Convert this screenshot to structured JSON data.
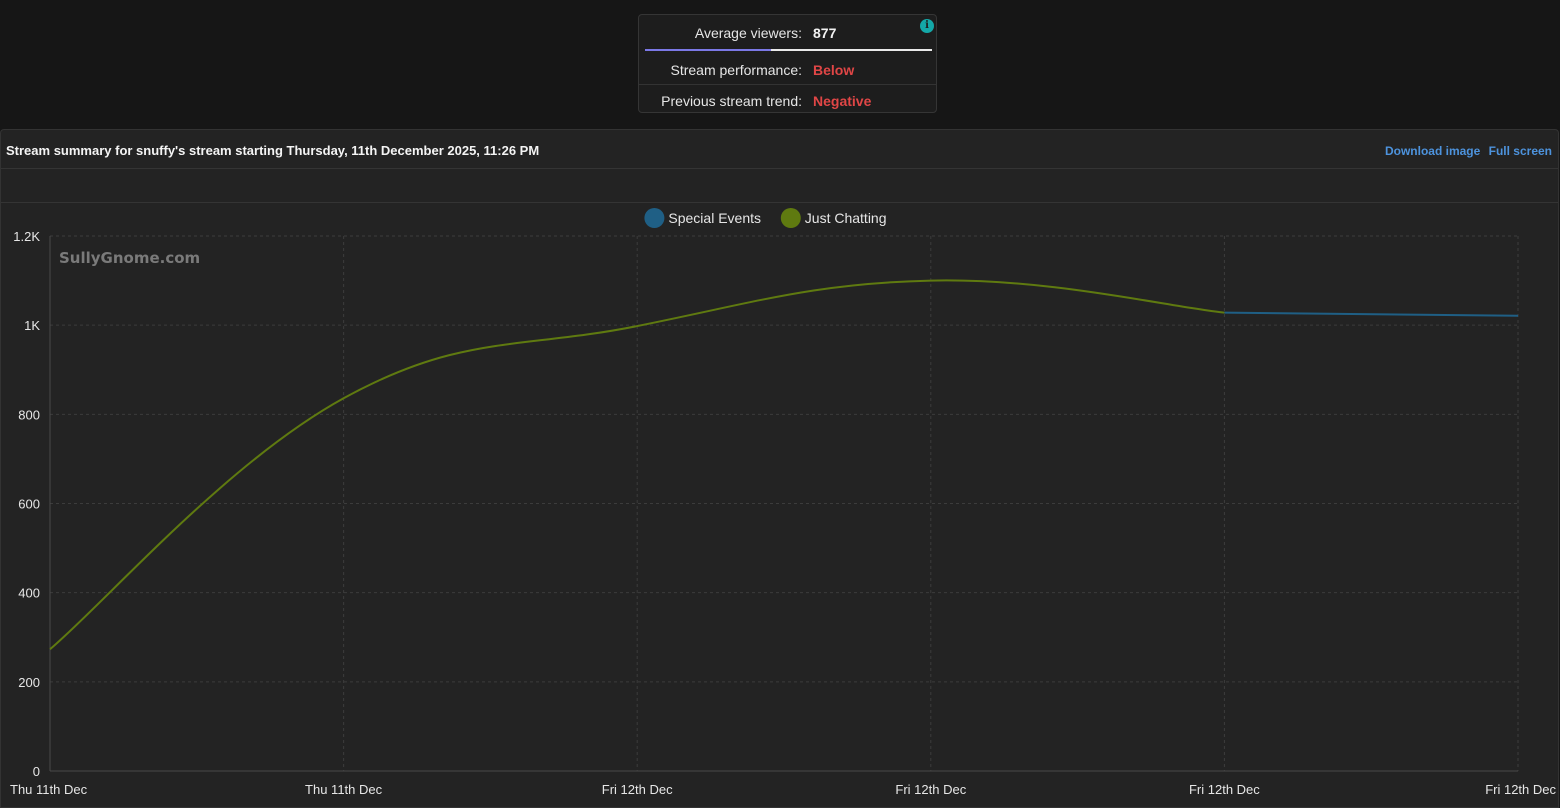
{
  "stats": {
    "average_viewers_label": "Average viewers:",
    "average_viewers_value": "877",
    "average_viewers_fraction": 0.44,
    "performance_label": "Stream performance:",
    "performance_value": "Below",
    "trend_label": "Previous stream trend:",
    "trend_value": "Negative",
    "info_icon": "i"
  },
  "panel": {
    "title": "Stream summary for snuffy's stream starting Thursday, 11th December 2025, 11:26 PM",
    "download_label": "Download image",
    "fullscreen_label": "Full screen"
  },
  "chart_data": {
    "type": "line",
    "watermark": "SullyGnome.com",
    "x": [
      "Thu 11th Dec",
      "Thu 11th Dec",
      "Fri 12th Dec",
      "Fri 12th Dec",
      "Fri 12th Dec",
      "Fri 12th Dec"
    ],
    "series": [
      {
        "name": "Special Events",
        "color": "#1f5f85",
        "points": [
          [
            4,
            1028
          ],
          [
            5,
            1021
          ]
        ]
      },
      {
        "name": "Just Chatting",
        "color": "#5f7a10",
        "points": [
          [
            0,
            273
          ],
          [
            1,
            836
          ],
          [
            2,
            998
          ],
          [
            3,
            1100
          ],
          [
            4,
            1028
          ]
        ]
      }
    ],
    "legend": [
      "Special Events",
      "Just Chatting"
    ],
    "legend_position": "top-center",
    "yticks": [
      0,
      200,
      400,
      600,
      800,
      1000,
      1200
    ],
    "ytick_labels": [
      "0",
      "200",
      "400",
      "600",
      "800",
      "1K",
      "1.2K"
    ],
    "ylim": [
      0,
      1200
    ],
    "grid": true
  }
}
